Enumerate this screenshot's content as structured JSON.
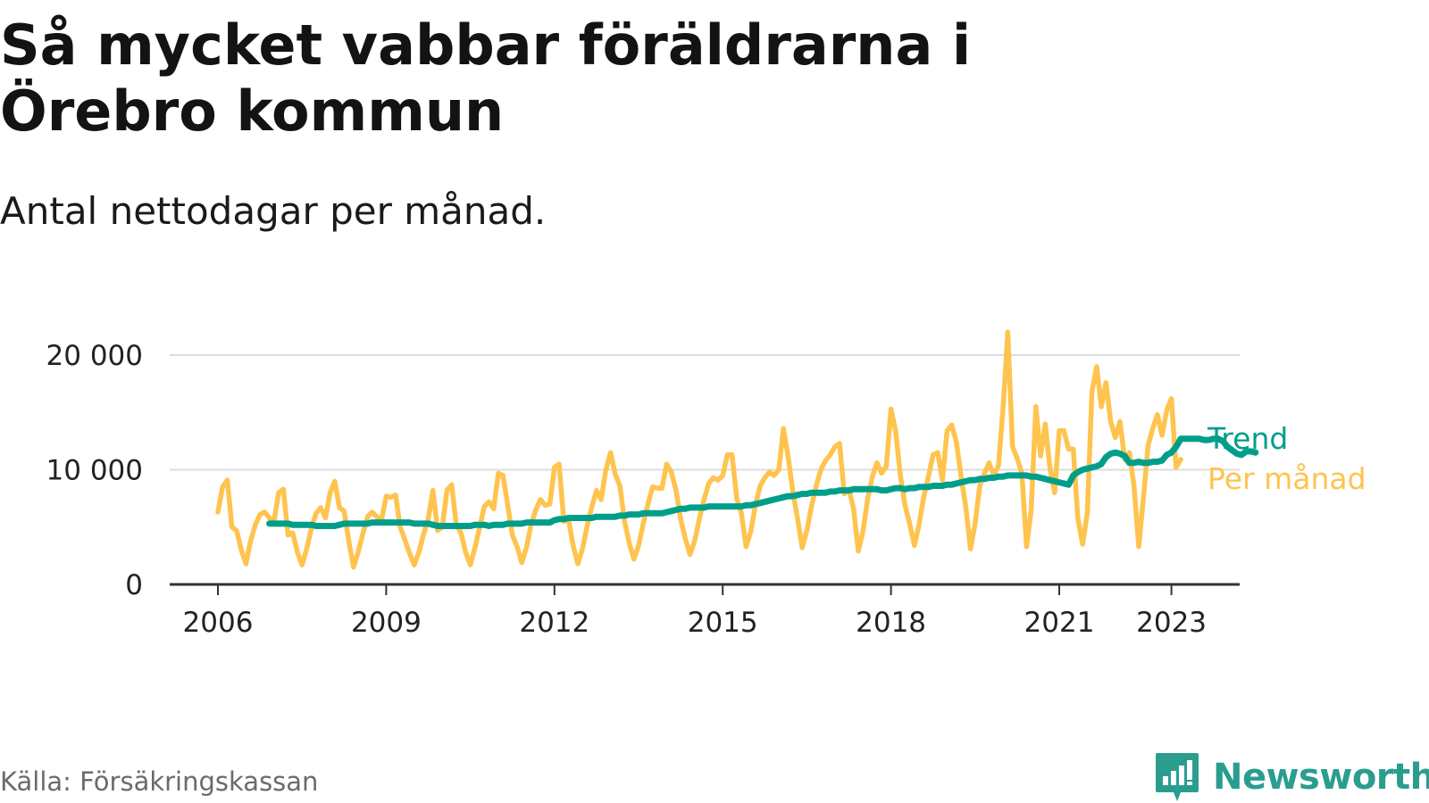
{
  "title": "Så mycket vabbar föräldrarna i Örebro kommun",
  "subtitle": "Antal nettodagar per månad.",
  "source": "Källa: Försäkringskassan",
  "brand": {
    "name": "Newsworthy",
    "icon": "newsworthy-logo-icon",
    "color": "#2a9d8f"
  },
  "chart_data": {
    "type": "line",
    "x_ticks": [
      {
        "label": "2006",
        "value": 2006
      },
      {
        "label": "2009",
        "value": 2009
      },
      {
        "label": "2012",
        "value": 2012
      },
      {
        "label": "2015",
        "value": 2015
      },
      {
        "label": "2018",
        "value": 2018
      },
      {
        "label": "2021",
        "value": 2021
      },
      {
        "label": "2023",
        "value": 2023
      }
    ],
    "y_ticks": [
      {
        "label": "0",
        "value": 0
      },
      {
        "label": "10 000",
        "value": 10000
      },
      {
        "label": "20 000",
        "value": 20000
      }
    ],
    "xlim": [
      2005.2,
      2024.2
    ],
    "ylim": [
      0,
      20000
    ],
    "grid": true,
    "legend_placement": "right-end",
    "series": [
      {
        "name": "Per månad",
        "color": "#fec44f",
        "start": "2006-01",
        "values": [
          6300,
          8500,
          9100,
          5000,
          4700,
          3000,
          1800,
          3800,
          5200,
          6100,
          6300,
          5800,
          5500,
          8000,
          8300,
          4300,
          4500,
          2800,
          1700,
          3100,
          4900,
          6200,
          6700,
          5800,
          8000,
          9000,
          6700,
          6400,
          3800,
          1500,
          2800,
          4400,
          5900,
          6300,
          5900,
          5600,
          7700,
          7600,
          7800,
          5000,
          3900,
          2700,
          1700,
          2800,
          4400,
          5700,
          8200,
          4700,
          5000,
          8200,
          8700,
          5200,
          4500,
          2800,
          1700,
          3200,
          5000,
          6800,
          7200,
          6600,
          9700,
          9500,
          6900,
          4300,
          3300,
          1900,
          3200,
          5200,
          6500,
          7400,
          6900,
          7000,
          10200,
          10500,
          5500,
          5700,
          3400,
          1800,
          3100,
          5100,
          6800,
          8200,
          7400,
          10000,
          11500,
          9600,
          8600,
          5500,
          3600,
          2200,
          3400,
          5300,
          7000,
          8500,
          8400,
          8400,
          10500,
          9800,
          8200,
          5700,
          4000,
          2600,
          3800,
          5700,
          7400,
          8800,
          9300,
          9100,
          9500,
          11300,
          11300,
          7500,
          6200,
          3300,
          4600,
          6900,
          8600,
          9300,
          9800,
          9500,
          10000,
          13600,
          11100,
          8100,
          5800,
          3200,
          4700,
          6800,
          8600,
          10000,
          10800,
          11300,
          12000,
          12300,
          7900,
          8300,
          6600,
          2900,
          4600,
          7400,
          9400,
          10600,
          9700,
          10300,
          15300,
          13400,
          9500,
          6900,
          5300,
          3400,
          5200,
          7600,
          9400,
          11300,
          11500,
          9100,
          13400,
          13900,
          12400,
          9400,
          6800,
          3100,
          5300,
          8600,
          9700,
          10600,
          9500,
          10400,
          15500,
          22000,
          12000,
          11000,
          9700,
          3300,
          6500,
          15500,
          11200,
          14000,
          10200,
          8000,
          13400,
          13400,
          11800,
          11800,
          5700,
          3500,
          6200,
          16800,
          19000,
          15500,
          17600,
          14200,
          12800,
          14200,
          10900,
          11500,
          8600,
          3300,
          7500,
          12100,
          13600,
          14800,
          13000,
          15200,
          16200,
          10200,
          10900
        ]
      },
      {
        "name": "Trend",
        "color": "#009e8a",
        "start": "2006-12",
        "values": [
          5300,
          5300,
          5300,
          5300,
          5300,
          5200,
          5200,
          5200,
          5200,
          5200,
          5100,
          5100,
          5100,
          5100,
          5100,
          5200,
          5300,
          5300,
          5300,
          5300,
          5300,
          5300,
          5400,
          5400,
          5400,
          5400,
          5400,
          5400,
          5400,
          5400,
          5400,
          5300,
          5300,
          5300,
          5300,
          5200,
          5100,
          5100,
          5100,
          5100,
          5100,
          5100,
          5100,
          5100,
          5200,
          5200,
          5200,
          5100,
          5200,
          5200,
          5200,
          5300,
          5300,
          5300,
          5300,
          5400,
          5400,
          5400,
          5400,
          5400,
          5400,
          5600,
          5700,
          5700,
          5800,
          5800,
          5800,
          5800,
          5800,
          5800,
          5900,
          5900,
          5900,
          5900,
          5900,
          6000,
          6000,
          6100,
          6100,
          6100,
          6200,
          6200,
          6200,
          6200,
          6200,
          6300,
          6400,
          6500,
          6600,
          6600,
          6700,
          6700,
          6700,
          6700,
          6800,
          6800,
          6800,
          6800,
          6800,
          6800,
          6800,
          6800,
          6900,
          6900,
          7000,
          7100,
          7200,
          7300,
          7400,
          7500,
          7600,
          7700,
          7700,
          7800,
          7900,
          7900,
          8000,
          8000,
          8000,
          8000,
          8100,
          8100,
          8200,
          8200,
          8200,
          8300,
          8300,
          8300,
          8300,
          8300,
          8300,
          8200,
          8200,
          8300,
          8400,
          8400,
          8300,
          8400,
          8400,
          8500,
          8500,
          8500,
          8600,
          8600,
          8600,
          8700,
          8700,
          8800,
          8900,
          9000,
          9100,
          9100,
          9200,
          9200,
          9300,
          9300,
          9400,
          9400,
          9500,
          9500,
          9500,
          9500,
          9500,
          9400,
          9400,
          9300,
          9200,
          9100,
          9000,
          8900,
          8800,
          8700,
          9500,
          9800,
          10000,
          10100,
          10200,
          10300,
          10500,
          11100,
          11400,
          11500,
          11400,
          11200,
          10600,
          10600,
          10700,
          10600,
          10600,
          10700,
          10700,
          10800,
          11300,
          11500,
          12000,
          12700,
          12700,
          12700,
          12700,
          12700,
          12600,
          12600,
          12700,
          12700,
          12500,
          12000,
          11700,
          11400,
          11300,
          11600,
          11600,
          11500
        ]
      }
    ]
  }
}
